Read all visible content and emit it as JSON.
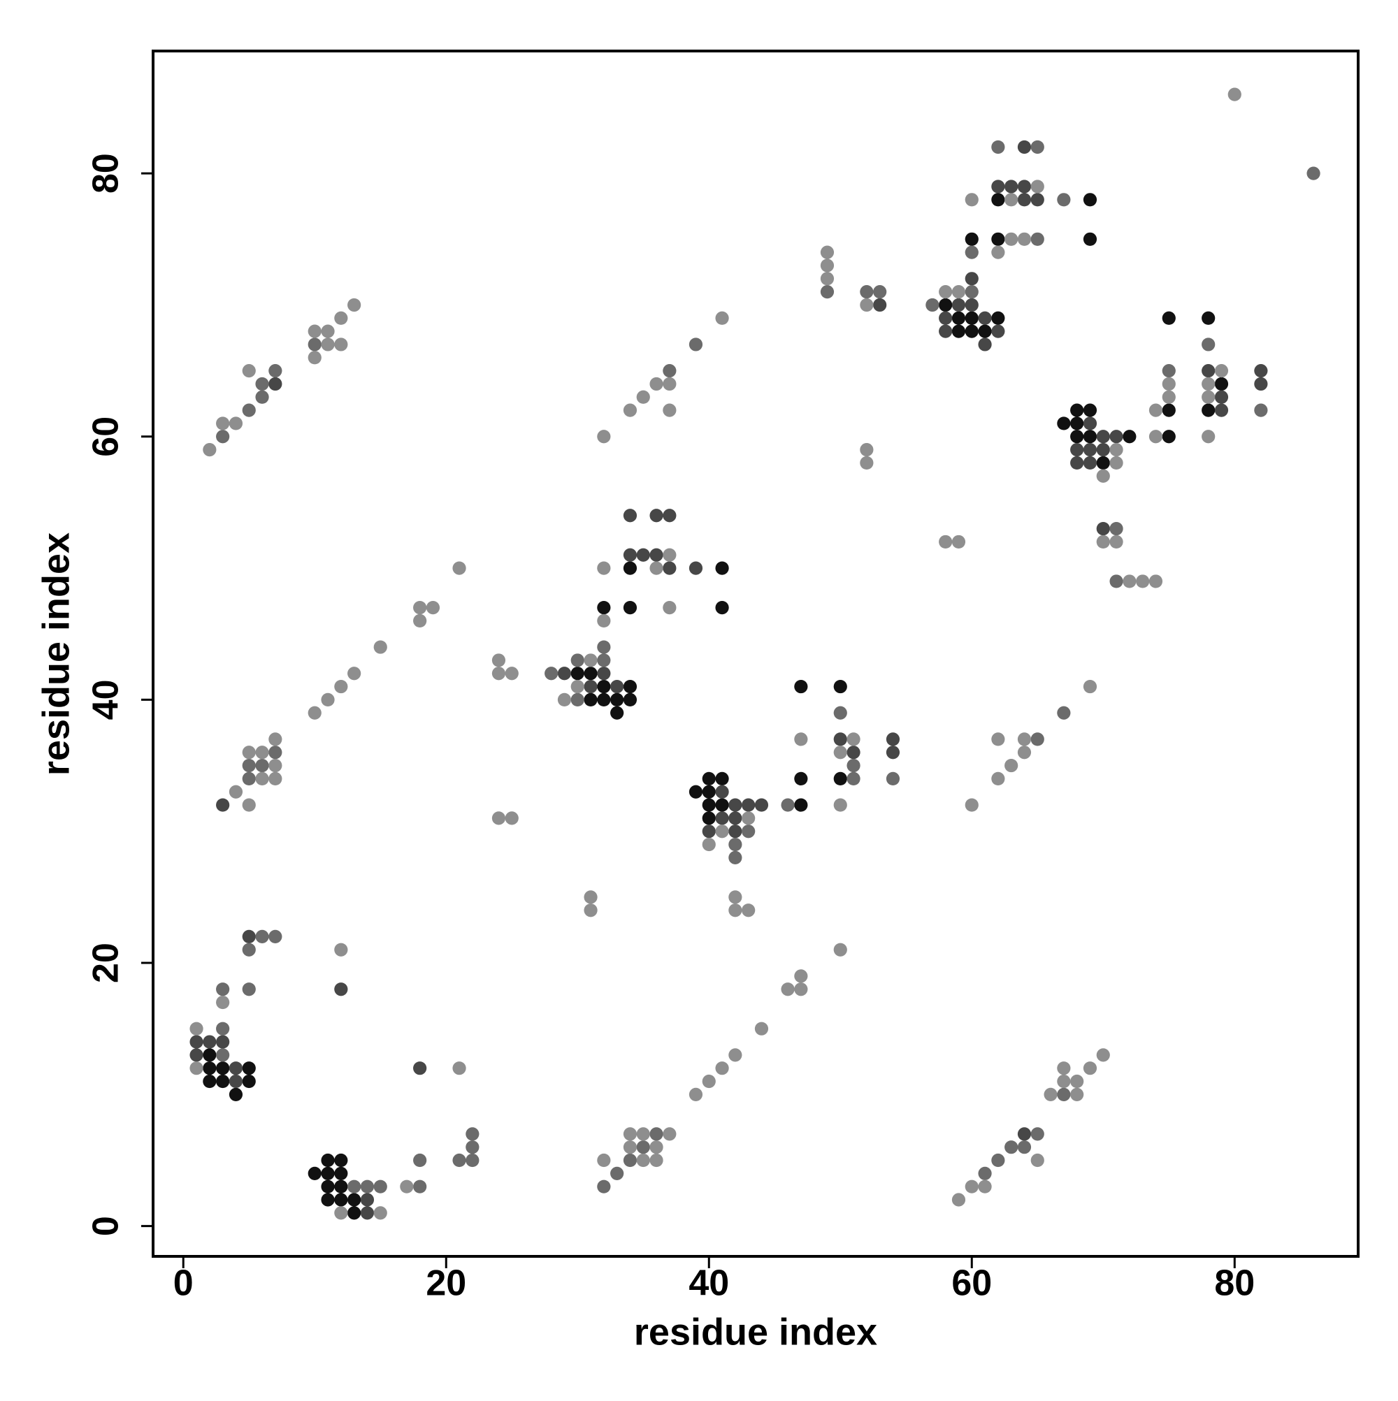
{
  "chart_data": {
    "type": "scatter",
    "xlabel": "residue index",
    "ylabel": "residue index",
    "xlim": [
      -2.3,
      89.4
    ],
    "ylim": [
      -2.3,
      89.3
    ],
    "xticks": [
      0,
      20,
      40,
      60,
      80
    ],
    "yticks": [
      0,
      20,
      40,
      60,
      80
    ],
    "series": [
      {
        "color": "#111111",
        "x": [
          2,
          2,
          3,
          5,
          2,
          3,
          5,
          4,
          10,
          11,
          12,
          11,
          12,
          11,
          12,
          11,
          12,
          13,
          13,
          39,
          40,
          41,
          40,
          40,
          41,
          40,
          47,
          47,
          47,
          50,
          50,
          30,
          31,
          32,
          34,
          31,
          32,
          33,
          34,
          33,
          32,
          34,
          34,
          41,
          41,
          58,
          59,
          60,
          62,
          59,
          60,
          61,
          60,
          62,
          62,
          69,
          69,
          67,
          68,
          68,
          69,
          68,
          69,
          72,
          70,
          75,
          75,
          75,
          78,
          79,
          78
        ],
        "values": [
          13,
          12,
          12,
          12,
          11,
          11,
          11,
          10,
          4,
          5,
          5,
          4,
          4,
          3,
          3,
          2,
          2,
          2,
          1,
          33,
          34,
          34,
          33,
          32,
          32,
          31,
          32,
          34,
          41,
          41,
          34,
          42,
          42,
          41,
          41,
          40,
          40,
          40,
          40,
          39,
          47,
          47,
          50,
          50,
          47,
          70,
          69,
          69,
          69,
          68,
          68,
          68,
          75,
          75,
          78,
          78,
          75,
          61,
          61,
          62,
          62,
          60,
          60,
          60,
          58,
          60,
          62,
          69,
          69,
          64,
          62
        ]
      },
      {
        "color": "#474747",
        "x": [
          1,
          2,
          3,
          1,
          4,
          4,
          5,
          12,
          14,
          14,
          18,
          41,
          42,
          43,
          44,
          41,
          42,
          40,
          42,
          50,
          51,
          54,
          54,
          29,
          32,
          31,
          33,
          34,
          35,
          36,
          37,
          39,
          34,
          36,
          37,
          3,
          7,
          53,
          59,
          60,
          60,
          58,
          61,
          58,
          62,
          61,
          62,
          63,
          64,
          64,
          65,
          64,
          69,
          70,
          71,
          68,
          69,
          70,
          68,
          69,
          70,
          78,
          79,
          79,
          82,
          82,
          64
        ],
        "values": [
          14,
          14,
          14,
          13,
          12,
          11,
          22,
          18,
          2,
          1,
          12,
          33,
          32,
          32,
          32,
          31,
          31,
          30,
          30,
          37,
          36,
          37,
          36,
          42,
          42,
          41,
          41,
          51,
          51,
          51,
          50,
          50,
          54,
          54,
          54,
          32,
          64,
          70,
          70,
          70,
          72,
          69,
          69,
          68,
          68,
          67,
          79,
          79,
          79,
          78,
          78,
          82,
          61,
          60,
          60,
          59,
          59,
          59,
          58,
          58,
          53,
          65,
          63,
          62,
          65,
          64,
          7
        ]
      },
      {
        "color": "#6b6b6b",
        "x": [
          3,
          3,
          3,
          5,
          5,
          6,
          7,
          13,
          14,
          15,
          18,
          18,
          21,
          22,
          22,
          22,
          32,
          33,
          36,
          35,
          34,
          43,
          42,
          42,
          46,
          50,
          51,
          51,
          54,
          28,
          30,
          32,
          32,
          30,
          7,
          5,
          6,
          5,
          3,
          5,
          6,
          6,
          7,
          10,
          37,
          39,
          49,
          52,
          53,
          57,
          60,
          60,
          62,
          65,
          65,
          67,
          86,
          71,
          71,
          75,
          78,
          82,
          67,
          65,
          61,
          62,
          63,
          64,
          65,
          67
        ],
        "values": [
          13,
          15,
          18,
          18,
          21,
          22,
          22,
          3,
          3,
          3,
          3,
          5,
          5,
          5,
          6,
          7,
          3,
          4,
          7,
          6,
          5,
          30,
          29,
          28,
          32,
          39,
          35,
          34,
          34,
          42,
          43,
          43,
          44,
          40,
          36,
          35,
          35,
          34,
          60,
          62,
          63,
          64,
          65,
          67,
          65,
          67,
          71,
          71,
          71,
          70,
          71,
          74,
          82,
          82,
          75,
          78,
          80,
          53,
          49,
          65,
          67,
          62,
          39,
          37,
          4,
          5,
          6,
          6,
          7,
          10
        ]
      },
      {
        "color": "#8e8e8e",
        "x": [
          1,
          1,
          3,
          12,
          12,
          15,
          17,
          21,
          32,
          34,
          35,
          37,
          34,
          36,
          35,
          36,
          31,
          31,
          39,
          40,
          41,
          42,
          44,
          46,
          47,
          47,
          50,
          43,
          41,
          40,
          42,
          42,
          43,
          47,
          51,
          50,
          50,
          31,
          30,
          29,
          24,
          24,
          25,
          24,
          25,
          32,
          37,
          32,
          37,
          36,
          4,
          5,
          5,
          6,
          7,
          6,
          7,
          7,
          10,
          11,
          12,
          13,
          15,
          18,
          18,
          19,
          21,
          2,
          3,
          4,
          5,
          10,
          11,
          12,
          10,
          11,
          12,
          13,
          32,
          34,
          35,
          36,
          37,
          37,
          41,
          49,
          49,
          49,
          52,
          52,
          52,
          58,
          59,
          60,
          62,
          65,
          63,
          63,
          64,
          80,
          58,
          59,
          71,
          71,
          70,
          70,
          71,
          72,
          73,
          74,
          74,
          74,
          75,
          75,
          79,
          78,
          78,
          78,
          69,
          64,
          64,
          63,
          62,
          62,
          60,
          59,
          60,
          61,
          65,
          66,
          68,
          67,
          68,
          67,
          69,
          70
        ],
        "values": [
          15,
          12,
          17,
          21,
          1,
          1,
          3,
          12,
          5,
          7,
          7,
          7,
          6,
          6,
          5,
          5,
          25,
          24,
          10,
          11,
          12,
          13,
          15,
          18,
          18,
          19,
          21,
          31,
          30,
          29,
          25,
          24,
          24,
          37,
          37,
          36,
          32,
          43,
          41,
          40,
          43,
          42,
          42,
          31,
          31,
          46,
          47,
          50,
          51,
          50,
          33,
          32,
          36,
          36,
          35,
          34,
          34,
          37,
          39,
          40,
          41,
          42,
          44,
          46,
          47,
          47,
          50,
          59,
          61,
          61,
          65,
          66,
          67,
          67,
          68,
          68,
          69,
          70,
          60,
          62,
          63,
          64,
          64,
          62,
          69,
          74,
          73,
          72,
          70,
          59,
          58,
          71,
          71,
          78,
          74,
          79,
          78,
          75,
          75,
          86,
          52,
          52,
          59,
          58,
          57,
          52,
          52,
          49,
          49,
          49,
          62,
          60,
          63,
          64,
          65,
          64,
          63,
          60,
          41,
          37,
          36,
          35,
          37,
          34,
          32,
          2,
          3,
          3,
          5,
          10,
          10,
          11,
          11,
          12,
          12,
          13
        ]
      }
    ]
  }
}
